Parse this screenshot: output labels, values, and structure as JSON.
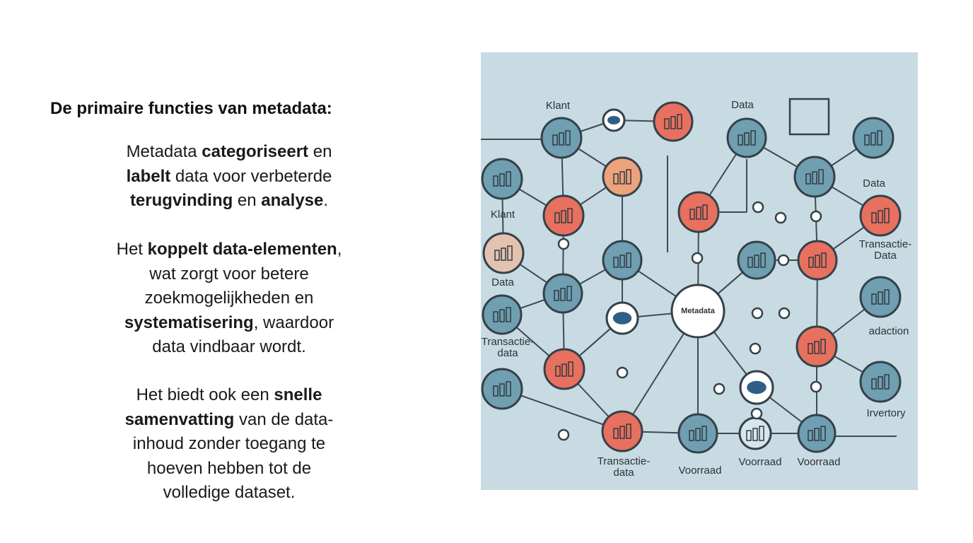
{
  "heading": "De primaire functies van metadata:",
  "paragraphs": [
    [
      [
        {
          "text": "Metadata ",
          "bold": false
        },
        {
          "text": "categoriseert",
          "bold": true
        },
        {
          "text": " en",
          "bold": false
        }
      ],
      [
        {
          "text": "labelt",
          "bold": true
        },
        {
          "text": " data voor verbeterde",
          "bold": false
        }
      ],
      [
        {
          "text": "terugvinding",
          "bold": true
        },
        {
          "text": " en ",
          "bold": false
        },
        {
          "text": "analyse",
          "bold": true
        },
        {
          "text": ".",
          "bold": false
        }
      ]
    ],
    [
      [
        {
          "text": "Het ",
          "bold": false
        },
        {
          "text": "koppelt data-elementen",
          "bold": true
        },
        {
          "text": ",",
          "bold": false
        }
      ],
      [
        {
          "text": "wat zorgt voor betere",
          "bold": false
        }
      ],
      [
        {
          "text": "zoekmogelijkheden en",
          "bold": false
        }
      ],
      [
        {
          "text": "systematisering",
          "bold": true
        },
        {
          "text": ", waardoor",
          "bold": false
        }
      ],
      [
        {
          "text": "data vindbaar wordt.",
          "bold": false
        }
      ]
    ],
    [
      [
        {
          "text": "Het biedt ook een ",
          "bold": false
        },
        {
          "text": "snelle",
          "bold": true
        }
      ],
      [
        {
          "text": "samenvatting",
          "bold": true
        },
        {
          "text": " van de data-",
          "bold": false
        }
      ],
      [
        {
          "text": "inhoud zonder toegang te",
          "bold": false
        }
      ],
      [
        {
          "text": "hoeven hebben tot de",
          "bold": false
        }
      ],
      [
        {
          "text": "volledige dataset.",
          "bold": false
        }
      ]
    ]
  ],
  "diagram": {
    "labels": [
      [
        "Klant"
      ],
      [
        "Data"
      ],
      [
        "Data"
      ],
      [
        "Klant"
      ],
      [
        "Transactie-",
        "Data"
      ],
      [
        "Data"
      ],
      [
        "Transactie-",
        "data"
      ],
      [
        "adaction"
      ],
      [
        "Metadata"
      ],
      [
        "Irvertory"
      ],
      [
        "Transactie-",
        "data"
      ],
      [
        "Voorraad"
      ],
      [
        "Voorraad"
      ],
      [
        "Voorraad"
      ]
    ]
  }
}
